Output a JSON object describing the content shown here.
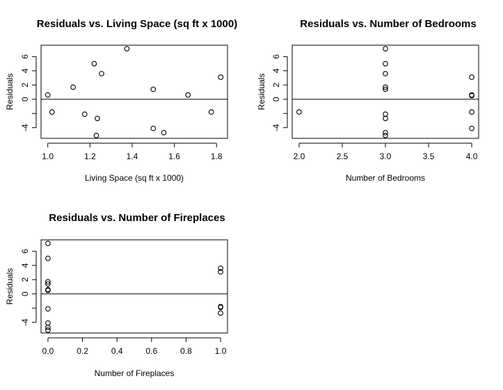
{
  "chart_data": [
    {
      "type": "scatter",
      "title": "Residuals vs. Living Space (sq ft x 1000)",
      "xlabel": "Living Space (sq ft x 1000)",
      "ylabel": "Residuals",
      "xticks": [
        1.0,
        1.2,
        1.4,
        1.6,
        1.8
      ],
      "xtick_labels": [
        "1.0",
        "1.2",
        "1.4",
        "1.6",
        "1.8"
      ],
      "yticks": [
        -4,
        -2,
        0,
        2,
        4,
        6
      ],
      "ytick_labels": [
        "-4",
        "",
        "0",
        "2",
        "4",
        "6"
      ],
      "xlim": [
        0.968,
        1.852
      ],
      "ylim": [
        -5.5,
        7.6
      ],
      "reference_line": 0,
      "points": [
        {
          "x": 1.0,
          "y": 0.6
        },
        {
          "x": 1.02,
          "y": -1.8
        },
        {
          "x": 1.12,
          "y": 1.7
        },
        {
          "x": 1.175,
          "y": -2.1
        },
        {
          "x": 1.22,
          "y": 5.0
        },
        {
          "x": 1.235,
          "y": -2.7
        },
        {
          "x": 1.23,
          "y": -5.1
        },
        {
          "x": 1.255,
          "y": 3.6
        },
        {
          "x": 1.375,
          "y": 7.1
        },
        {
          "x": 1.5,
          "y": 1.4
        },
        {
          "x": 1.5,
          "y": -4.1
        },
        {
          "x": 1.55,
          "y": -4.7
        },
        {
          "x": 1.665,
          "y": 0.6
        },
        {
          "x": 1.775,
          "y": -1.8
        },
        {
          "x": 1.82,
          "y": 3.1
        }
      ]
    },
    {
      "type": "scatter",
      "title": "Residuals vs. Number of Bedrooms",
      "xlabel": "Number of Bedrooms",
      "ylabel": "Residuals",
      "xticks": [
        2.0,
        2.5,
        3.0,
        3.5,
        4.0
      ],
      "xtick_labels": [
        "2.0",
        "2.5",
        "3.0",
        "3.5",
        "4.0"
      ],
      "yticks": [
        -4,
        -2,
        0,
        2,
        4,
        6
      ],
      "ytick_labels": [
        "-4",
        "",
        "0",
        "2",
        "4",
        "6"
      ],
      "xlim": [
        1.92,
        4.08
      ],
      "ylim": [
        -5.5,
        7.6
      ],
      "reference_line": 0,
      "points": [
        {
          "x": 2,
          "y": -1.8
        },
        {
          "x": 3,
          "y": 7.1
        },
        {
          "x": 3,
          "y": 5.0
        },
        {
          "x": 3,
          "y": 3.6
        },
        {
          "x": 3,
          "y": 1.7
        },
        {
          "x": 3,
          "y": 1.4
        },
        {
          "x": 3,
          "y": -2.1
        },
        {
          "x": 3,
          "y": -2.7
        },
        {
          "x": 3,
          "y": -4.7
        },
        {
          "x": 3,
          "y": -5.1
        },
        {
          "x": 4,
          "y": 3.1
        },
        {
          "x": 4,
          "y": 0.6
        },
        {
          "x": 4,
          "y": 0.5
        },
        {
          "x": 4,
          "y": -1.8
        },
        {
          "x": 4,
          "y": -4.1
        }
      ]
    },
    {
      "type": "scatter",
      "title": "Residuals vs. Number of Fireplaces",
      "xlabel": "Number of Fireplaces",
      "ylabel": "Residuals",
      "xticks": [
        0.0,
        0.2,
        0.4,
        0.6,
        0.8,
        1.0
      ],
      "xtick_labels": [
        "0.0",
        "0.2",
        "0.4",
        "0.6",
        "0.8",
        "1.0"
      ],
      "yticks": [
        -4,
        -2,
        0,
        2,
        4,
        6
      ],
      "ytick_labels": [
        "-4",
        "",
        "0",
        "2",
        "4",
        "6"
      ],
      "xlim": [
        -0.04,
        1.04
      ],
      "ylim": [
        -5.5,
        7.6
      ],
      "reference_line": 0,
      "points": [
        {
          "x": 0,
          "y": 7.1
        },
        {
          "x": 0,
          "y": 5.0
        },
        {
          "x": 0,
          "y": 1.7
        },
        {
          "x": 0,
          "y": 1.4
        },
        {
          "x": 0,
          "y": 0.6
        },
        {
          "x": 0,
          "y": 0.5
        },
        {
          "x": 0,
          "y": -2.1
        },
        {
          "x": 0,
          "y": -4.1
        },
        {
          "x": 0,
          "y": -4.7
        },
        {
          "x": 0,
          "y": -5.1
        },
        {
          "x": 1,
          "y": 3.6
        },
        {
          "x": 1,
          "y": 3.1
        },
        {
          "x": 1,
          "y": -1.8
        },
        {
          "x": 1,
          "y": -1.9
        },
        {
          "x": 1,
          "y": -2.7
        }
      ]
    }
  ]
}
